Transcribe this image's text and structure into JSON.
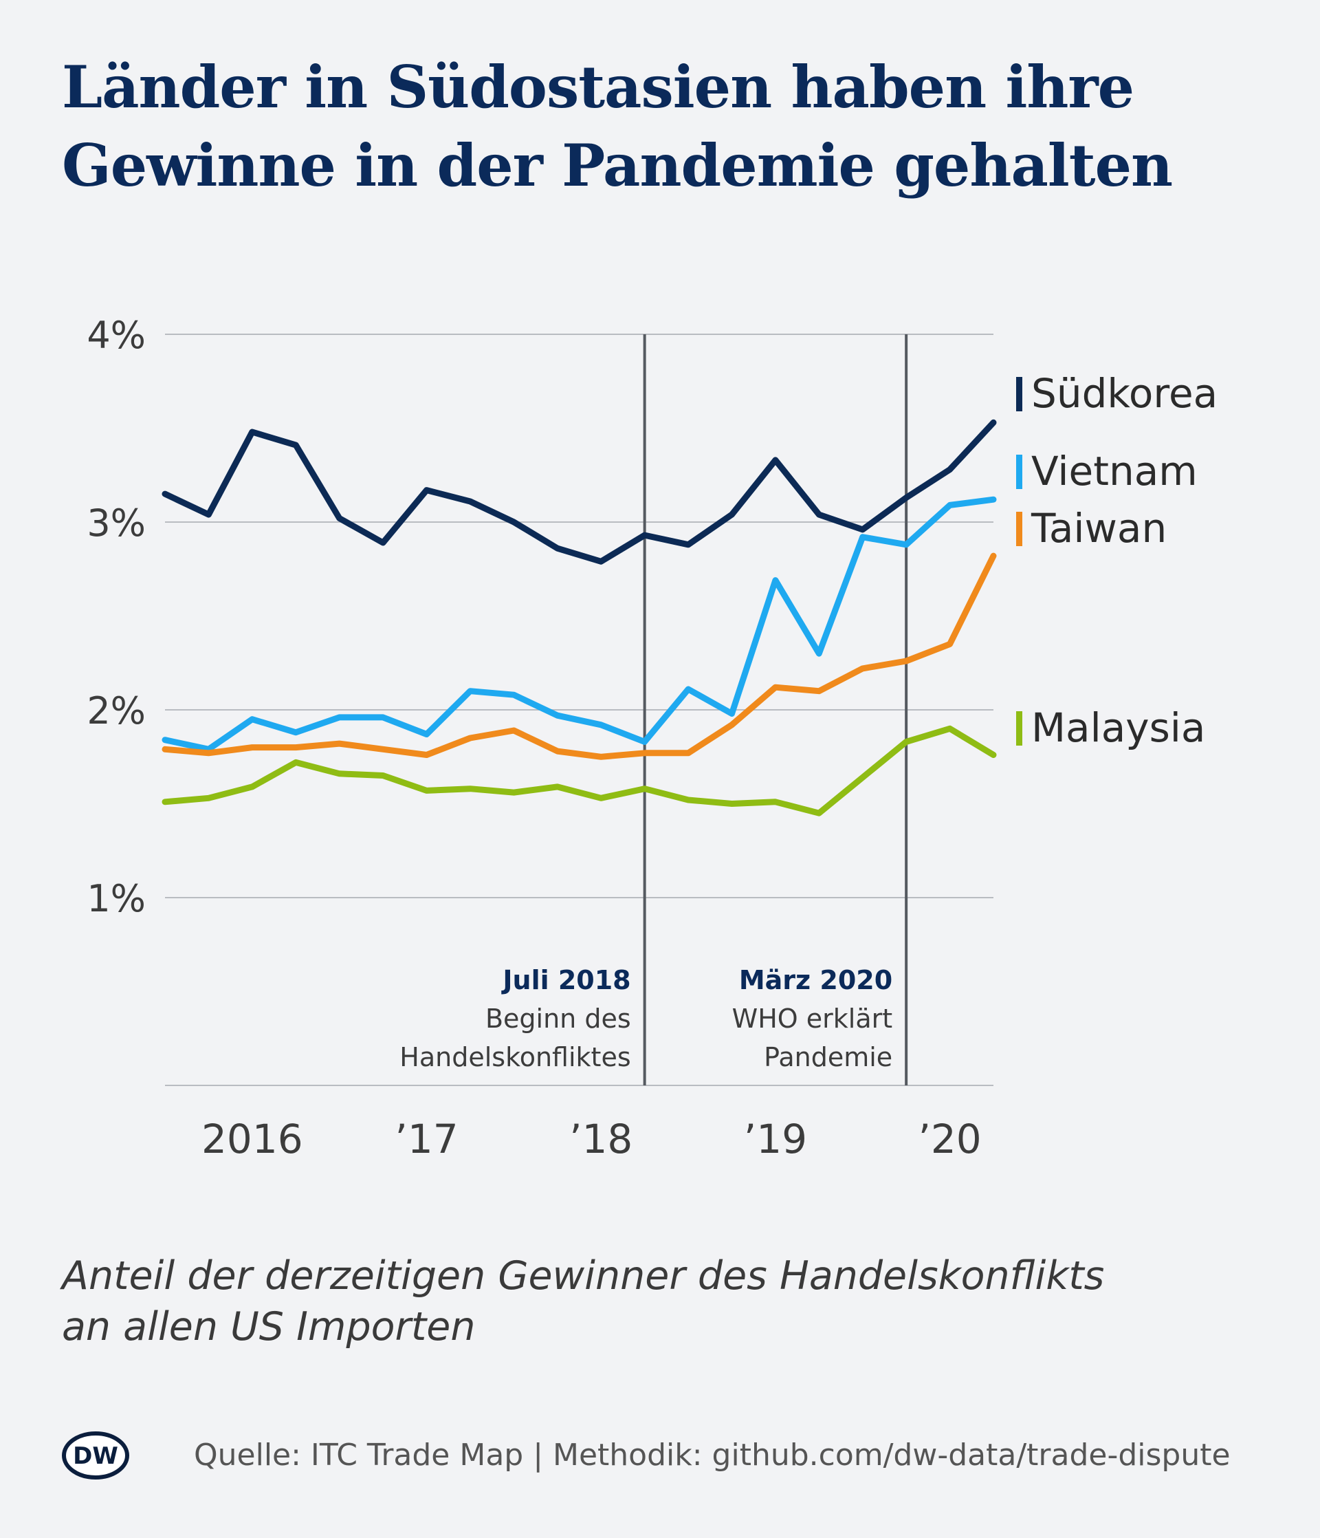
{
  "title_lines": [
    "Länder in Südostasien haben ihre",
    "Gewinne in der Pandemie gehalten"
  ],
  "subtitle_lines": [
    "Anteil der derzeitigen Gewinner des Handelskonflikts",
    "an allen US Importen"
  ],
  "source": "Quelle: ITC Trade Map | Methodik: github.com/dw-data/trade-dispute",
  "logo_text": "DW",
  "colors": {
    "background": "#f2f3f5",
    "title": "#0b2a5a",
    "grid": "#b9bcc1",
    "marker": "#555a60"
  },
  "chart_data": {
    "type": "line",
    "x_unit": "quarter",
    "x": [
      "2015-Q4",
      "2016-Q1",
      "2016-Q2",
      "2016-Q3",
      "2016-Q4",
      "2017-Q1",
      "2017-Q2",
      "2017-Q3",
      "2017-Q4",
      "2018-Q1",
      "2018-Q2",
      "2018-Q3",
      "2018-Q4",
      "2019-Q1",
      "2019-Q2",
      "2019-Q3",
      "2019-Q4",
      "2020-Q1",
      "2020-Q2",
      "2020-Q3"
    ],
    "ylim": [
      0,
      4
    ],
    "yticks": [
      1,
      2,
      3,
      4
    ],
    "ytick_labels": [
      "1%",
      "2%",
      "3%",
      "4%"
    ],
    "xtick_labels": [
      {
        "label": "2016",
        "x": "2016-Q2"
      },
      {
        "label": "’17",
        "x": "2017-Q2"
      },
      {
        "label": "’18",
        "x": "2018-Q2"
      },
      {
        "label": "’19",
        "x": "2019-Q2"
      },
      {
        "label": "’20",
        "x": "2020-Q2"
      }
    ],
    "grid": true,
    "series": [
      {
        "name": "Südkorea",
        "color": "#0c2a55",
        "values": [
          3.15,
          3.04,
          3.48,
          3.41,
          3.02,
          2.89,
          3.17,
          3.11,
          3.0,
          2.86,
          2.79,
          2.93,
          2.88,
          3.04,
          3.33,
          3.04,
          2.96,
          3.13,
          3.28,
          3.53
        ]
      },
      {
        "name": "Vietnam",
        "color": "#1fa9f0",
        "values": [
          1.84,
          1.79,
          1.95,
          1.88,
          1.96,
          1.96,
          1.87,
          2.1,
          2.08,
          1.97,
          1.92,
          1.83,
          2.11,
          1.98,
          2.69,
          2.3,
          2.92,
          2.88,
          3.09,
          3.12
        ]
      },
      {
        "name": "Taiwan",
        "color": "#f08a1c",
        "values": [
          1.79,
          1.77,
          1.8,
          1.8,
          1.82,
          1.79,
          1.76,
          1.85,
          1.89,
          1.78,
          1.75,
          1.77,
          1.77,
          1.92,
          2.12,
          2.1,
          2.22,
          2.26,
          2.35,
          2.82
        ]
      },
      {
        "name": "Malaysia",
        "color": "#8fbc14",
        "values": [
          1.51,
          1.53,
          1.59,
          1.72,
          1.66,
          1.65,
          1.57,
          1.58,
          1.56,
          1.59,
          1.53,
          1.58,
          1.52,
          1.5,
          1.51,
          1.45,
          1.64,
          1.83,
          1.9,
          1.76
        ]
      }
    ],
    "annotations": [
      {
        "x": "2018-Q3",
        "heading": "Juli 2018",
        "lines": [
          "Beginn des",
          "Handelskonfliktes"
        ]
      },
      {
        "x": "2020-Q1",
        "heading": "März 2020",
        "lines": [
          "WHO erklärt",
          "Pandemie"
        ]
      }
    ]
  }
}
